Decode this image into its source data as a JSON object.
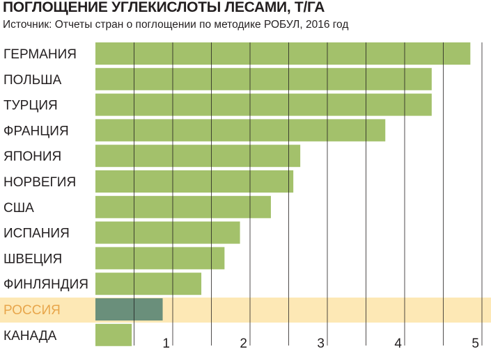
{
  "chart_data": {
    "type": "bar",
    "orientation": "horizontal",
    "title": "ПОГЛОЩЕНИЕ УГЛЕКИСЛОТЫ ЛЕСАМИ, Т/ГА",
    "subtitle": "Источник: Отчеты стран о поглощении по методике РОБУЛ, 2016 год",
    "categories": [
      "ГЕРМАНИЯ",
      "ПОЛЬША",
      "ТУРЦИЯ",
      "ФРАНЦИЯ",
      "ЯПОНИЯ",
      "НОРВЕГИЯ",
      "США",
      "ИСПАНИЯ",
      "ШВЕЦИЯ",
      "ФИНЛЯНДИЯ",
      "РОССИЯ",
      "КАНАДА"
    ],
    "values": [
      4.85,
      4.35,
      4.35,
      3.75,
      2.65,
      2.56,
      2.27,
      1.87,
      1.67,
      1.37,
      0.87,
      0.47
    ],
    "highlight": "РОССИЯ",
    "xlim": [
      0,
      5
    ],
    "xticks": [
      "1",
      "2",
      "3",
      "4",
      "5"
    ],
    "xlabel": "",
    "ylabel": "",
    "grid": true,
    "colors": {
      "bar": "#a3c16b",
      "highlight_bar": "#6a8f7b",
      "highlight_band": "#fde8b5",
      "highlight_label": "#e8a64b",
      "grid": "#231f20",
      "text": "#231f20"
    }
  }
}
